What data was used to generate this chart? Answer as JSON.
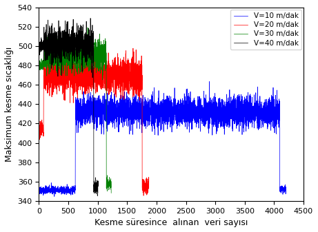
{
  "xlabel": "Kesme süresince  alınan  veri sayısı",
  "ylabel": "Maksimum kesme sıcaklığı",
  "xlim": [
    0,
    4500
  ],
  "ylim": [
    340,
    540
  ],
  "yticks": [
    340,
    360,
    380,
    400,
    420,
    440,
    460,
    480,
    500,
    520,
    540
  ],
  "xticks": [
    0,
    500,
    1000,
    1500,
    2000,
    2500,
    3000,
    3500,
    4000,
    4500
  ],
  "legend_labels": [
    "V=10 m/dak",
    "V=20 m/dak",
    "V=30 m/dak",
    "V=40 m/dak"
  ],
  "colors": [
    "blue",
    "red",
    "green",
    "black"
  ],
  "series_params": [
    {
      "color": "blue",
      "label": "V=10 m/dak",
      "pre_start": 0,
      "pre_end": 618,
      "pre_val": 351,
      "plateau_start": 620,
      "plateau_end": 4095,
      "plateau_val": 432,
      "post_val": 352,
      "post_end": 4200,
      "noise_pre": 2.0,
      "noise_plateau": 8.0
    },
    {
      "color": "red",
      "label": "V=20 m/dak",
      "pre_start": 0,
      "pre_end": 78,
      "pre_val": 415,
      "plateau_start": 80,
      "plateau_end": 1755,
      "plateau_val": 470,
      "post_val": 354,
      "post_end": 1870,
      "noise_pre": 4.0,
      "noise_plateau": 9.0
    },
    {
      "color": "green",
      "label": "V=30 m/dak",
      "pre_start": 0,
      "pre_end": 78,
      "pre_val": 480,
      "plateau_start": 80,
      "plateau_end": 1145,
      "plateau_val": 491,
      "post_val": 357,
      "post_end": 1230,
      "noise_pre": 3.0,
      "noise_plateau": 8.0
    },
    {
      "color": "black",
      "label": "V=40 m/dak",
      "pre_start": 0,
      "pre_end": 78,
      "pre_val": 500,
      "plateau_start": 80,
      "plateau_end": 930,
      "plateau_val": 502,
      "post_val": 354,
      "post_end": 1010,
      "noise_pre": 3.0,
      "noise_plateau": 9.0
    }
  ],
  "seed": 42,
  "linewidth": 0.5,
  "tick_labelsize": 8,
  "label_fontsize": 9,
  "legend_fontsize": 7.5
}
